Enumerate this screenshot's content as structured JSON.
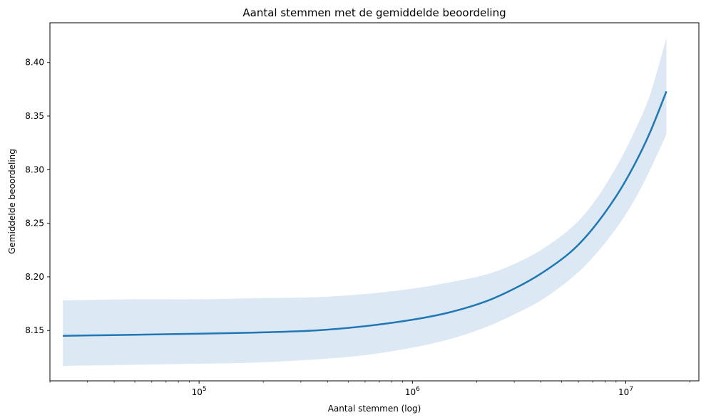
{
  "chart_data": {
    "type": "line",
    "title": "Aantal stemmen met de gemiddelde beoordeling",
    "xlabel": "Aantal stemmen (log)",
    "ylabel": "Gemiddelde beoordeling",
    "xscale": "log",
    "xlim": [
      20000,
      22000000
    ],
    "ylim": [
      8.103,
      8.437
    ],
    "grid": false,
    "x_ticks": [
      {
        "base": "10",
        "exp": "5",
        "value": 100000
      },
      {
        "base": "10",
        "exp": "6",
        "value": 1000000
      },
      {
        "base": "10",
        "exp": "7",
        "value": 10000000
      }
    ],
    "y_ticks": [
      "8.15",
      "8.20",
      "8.25",
      "8.30",
      "8.35",
      "8.40"
    ],
    "colors": {
      "line": "#1f77b4",
      "band": "#dce8f3"
    },
    "series": [
      {
        "x": [
          23000,
          50000,
          100000,
          180000,
          350000,
          600000,
          1000000,
          1500000,
          2200000,
          3000000,
          4000000,
          5500000,
          7000000,
          9000000,
          11000000,
          13000000,
          15500000
        ],
        "y": [
          8.145,
          8.146,
          8.147,
          8.148,
          8.15,
          8.154,
          8.16,
          8.167,
          8.177,
          8.189,
          8.203,
          8.223,
          8.245,
          8.275,
          8.305,
          8.335,
          8.373
        ],
        "lower": [
          8.117,
          8.118,
          8.119,
          8.12,
          8.123,
          8.127,
          8.134,
          8.142,
          8.153,
          8.165,
          8.178,
          8.198,
          8.218,
          8.245,
          8.272,
          8.3,
          8.333
        ],
        "upper": [
          8.178,
          8.179,
          8.179,
          8.18,
          8.181,
          8.184,
          8.189,
          8.195,
          8.202,
          8.212,
          8.225,
          8.245,
          8.268,
          8.302,
          8.336,
          8.37,
          8.423
        ]
      }
    ]
  }
}
